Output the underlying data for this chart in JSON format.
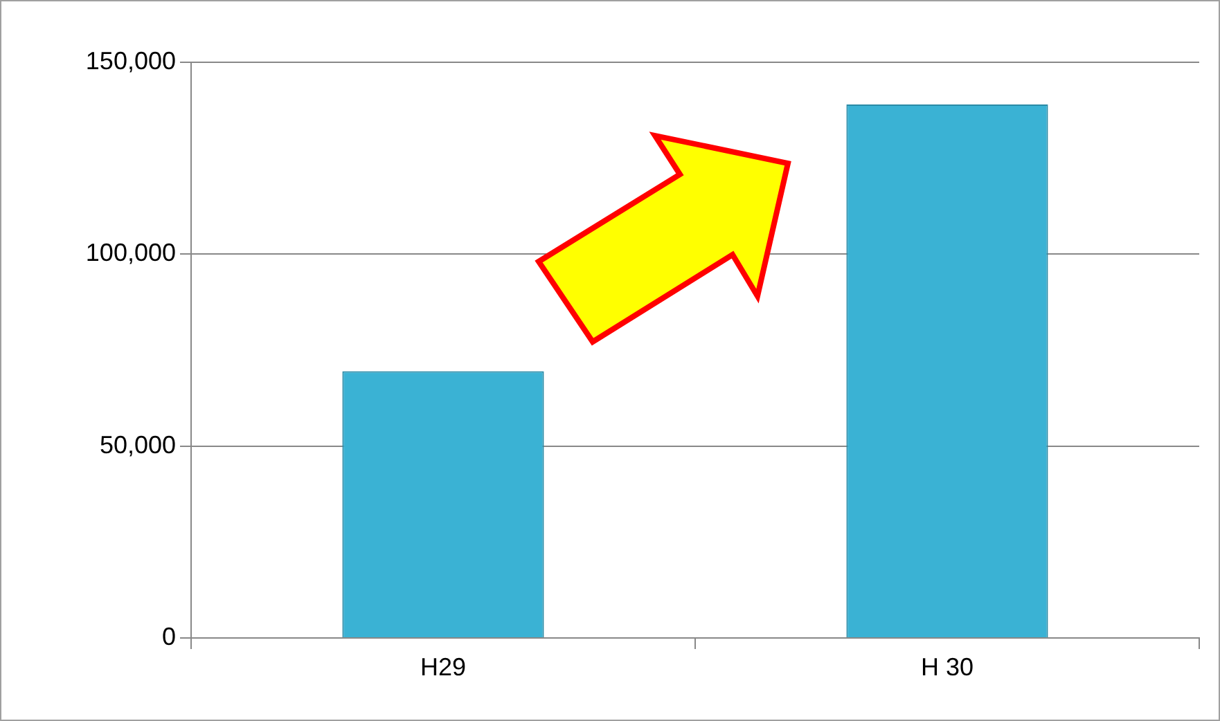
{
  "chart_data": {
    "type": "bar",
    "categories": [
      "H29",
      "H 30"
    ],
    "values": [
      69500,
      139000
    ],
    "color": "#3ab2d4",
    "ylim": [
      0,
      150000
    ],
    "yticks": [
      {
        "value": 0,
        "label": "0"
      },
      {
        "value": 50000,
        "label": "50,000"
      },
      {
        "value": 100000,
        "label": "100,000"
      },
      {
        "value": 150000,
        "label": "150,000"
      }
    ],
    "grid": "y",
    "legend": false
  }
}
